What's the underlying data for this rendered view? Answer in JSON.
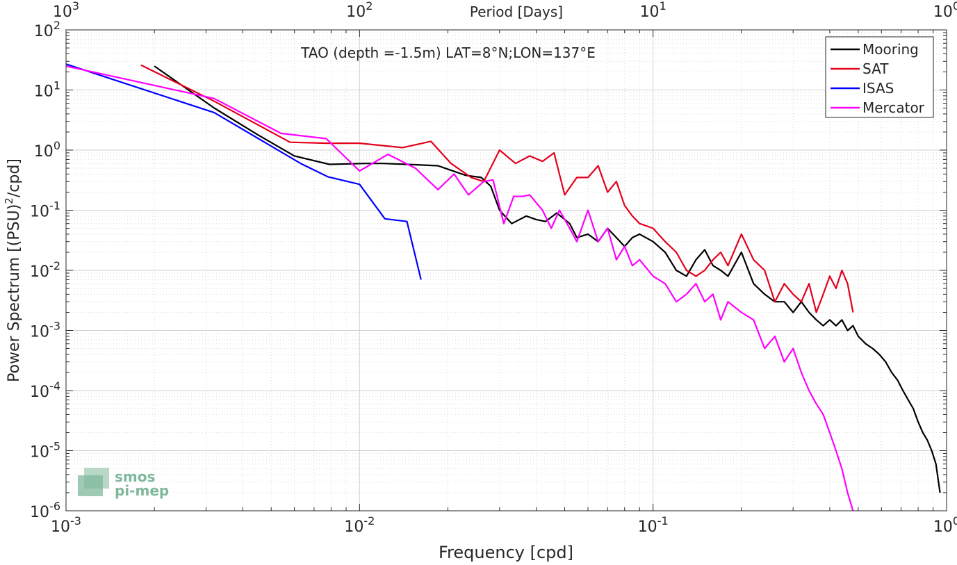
{
  "chart_data": {
    "type": "line",
    "title": "TAO (depth =-1.5m) LAT=8°N;LON=137°E",
    "xlabel": "Frequency [cpd]",
    "ylabel_main": "Power Spectrum [(PSU)",
    "ylabel_sup": "2",
    "ylabel_tail": "/cpd]",
    "top_axis_label": "Period [Days]",
    "x_scale": "log",
    "y_scale": "log",
    "xlim": [
      0.001,
      1
    ],
    "ylim": [
      1e-06,
      100
    ],
    "x_ticks": [
      {
        "value": 0.001,
        "base": "10",
        "exp": "-3"
      },
      {
        "value": 0.01,
        "base": "10",
        "exp": "-2"
      },
      {
        "value": 0.1,
        "base": "10",
        "exp": "-1"
      },
      {
        "value": 1,
        "base": "10",
        "exp": "0"
      }
    ],
    "y_ticks": [
      {
        "value": 1e-06,
        "base": "10",
        "exp": "-6"
      },
      {
        "value": 1e-05,
        "base": "10",
        "exp": "-5"
      },
      {
        "value": 0.0001,
        "base": "10",
        "exp": "-4"
      },
      {
        "value": 0.001,
        "base": "10",
        "exp": "-3"
      },
      {
        "value": 0.01,
        "base": "10",
        "exp": "-2"
      },
      {
        "value": 0.1,
        "base": "10",
        "exp": "-1"
      },
      {
        "value": 1,
        "base": "10",
        "exp": "0"
      },
      {
        "value": 10,
        "base": "10",
        "exp": "1"
      },
      {
        "value": 100,
        "base": "10",
        "exp": "2"
      }
    ],
    "top_ticks": [
      {
        "value": 0.001,
        "base": "10",
        "exp": "3"
      },
      {
        "value": 0.01,
        "base": "10",
        "exp": "2"
      },
      {
        "value": 0.1,
        "base": "10",
        "exp": "1"
      },
      {
        "value": 1,
        "base": "10",
        "exp": "0"
      }
    ],
    "grid": true,
    "legend_position": "top-right",
    "series": [
      {
        "name": "Mooring",
        "color": "#000000",
        "x": [
          0.002,
          0.0032,
          0.0045,
          0.006,
          0.0079,
          0.0105,
          0.012,
          0.0145,
          0.0185,
          0.023,
          0.026,
          0.028,
          0.03,
          0.033,
          0.037,
          0.04,
          0.043,
          0.047,
          0.052,
          0.055,
          0.06,
          0.065,
          0.07,
          0.075,
          0.08,
          0.085,
          0.09,
          0.1,
          0.11,
          0.12,
          0.13,
          0.14,
          0.15,
          0.16,
          0.17,
          0.18,
          0.2,
          0.22,
          0.24,
          0.26,
          0.28,
          0.3,
          0.32,
          0.34,
          0.36,
          0.38,
          0.4,
          0.42,
          0.44,
          0.46,
          0.48,
          0.5,
          0.53,
          0.56,
          0.59,
          0.62,
          0.65,
          0.68,
          0.71,
          0.74,
          0.77,
          0.8,
          0.83,
          0.86,
          0.89,
          0.92,
          0.95
        ],
        "y": [
          25,
          5,
          1.8,
          0.8,
          0.58,
          0.6,
          0.6,
          0.58,
          0.55,
          0.38,
          0.35,
          0.25,
          0.1,
          0.06,
          0.08,
          0.07,
          0.065,
          0.09,
          0.06,
          0.035,
          0.04,
          0.03,
          0.05,
          0.035,
          0.025,
          0.035,
          0.04,
          0.03,
          0.02,
          0.01,
          0.008,
          0.015,
          0.022,
          0.012,
          0.01,
          0.008,
          0.02,
          0.006,
          0.004,
          0.003,
          0.003,
          0.002,
          0.003,
          0.002,
          0.0015,
          0.0012,
          0.0015,
          0.0012,
          0.0015,
          0.001,
          0.0012,
          0.0008,
          0.0006,
          0.0005,
          0.0004,
          0.0003,
          0.0002,
          0.00015,
          0.0001,
          7e-05,
          5e-05,
          3e-05,
          2e-05,
          1.5e-05,
          1e-05,
          6e-06,
          2e-06
        ]
      },
      {
        "name": "SAT",
        "color": "#e3001b",
        "x": [
          0.0018,
          0.0032,
          0.0058,
          0.0078,
          0.01,
          0.014,
          0.0175,
          0.0205,
          0.024,
          0.0265,
          0.03,
          0.034,
          0.038,
          0.042,
          0.046,
          0.05,
          0.055,
          0.06,
          0.065,
          0.07,
          0.075,
          0.08,
          0.085,
          0.09,
          0.1,
          0.11,
          0.12,
          0.13,
          0.14,
          0.15,
          0.16,
          0.17,
          0.18,
          0.2,
          0.22,
          0.24,
          0.26,
          0.28,
          0.3,
          0.32,
          0.34,
          0.36,
          0.38,
          0.4,
          0.42,
          0.44,
          0.46,
          0.48
        ],
        "y": [
          26,
          6.5,
          1.35,
          1.3,
          1.3,
          1.1,
          1.4,
          0.6,
          0.35,
          0.3,
          1.0,
          0.6,
          0.8,
          0.65,
          0.9,
          0.18,
          0.35,
          0.35,
          0.55,
          0.2,
          0.3,
          0.12,
          0.08,
          0.06,
          0.05,
          0.03,
          0.02,
          0.01,
          0.008,
          0.01,
          0.015,
          0.02,
          0.012,
          0.04,
          0.015,
          0.01,
          0.003,
          0.006,
          0.004,
          0.003,
          0.006,
          0.002,
          0.004,
          0.008,
          0.005,
          0.01,
          0.006,
          0.002
        ]
      },
      {
        "name": "ISAS",
        "color": "#0000ff",
        "x": [
          0.001,
          0.0032,
          0.0063,
          0.0078,
          0.01,
          0.0122,
          0.0145,
          0.0162
        ],
        "y": [
          27,
          4.2,
          0.6,
          0.36,
          0.27,
          0.072,
          0.065,
          0.007
        ]
      },
      {
        "name": "Mercator",
        "color": "#ff00ff",
        "x": [
          0.001,
          0.0032,
          0.0054,
          0.0077,
          0.01,
          0.0125,
          0.0155,
          0.0185,
          0.021,
          0.0235,
          0.0265,
          0.0285,
          0.031,
          0.0335,
          0.036,
          0.038,
          0.042,
          0.045,
          0.048,
          0.052,
          0.055,
          0.06,
          0.065,
          0.07,
          0.075,
          0.08,
          0.085,
          0.09,
          0.1,
          0.11,
          0.12,
          0.13,
          0.14,
          0.15,
          0.16,
          0.17,
          0.18,
          0.2,
          0.22,
          0.24,
          0.26,
          0.28,
          0.3,
          0.32,
          0.34,
          0.36,
          0.38,
          0.4,
          0.42,
          0.44,
          0.46,
          0.48
        ],
        "y": [
          25,
          7.2,
          1.9,
          1.55,
          0.45,
          0.85,
          0.5,
          0.22,
          0.4,
          0.18,
          0.3,
          0.32,
          0.06,
          0.17,
          0.17,
          0.18,
          0.1,
          0.05,
          0.1,
          0.05,
          0.03,
          0.1,
          0.03,
          0.05,
          0.015,
          0.025,
          0.012,
          0.015,
          0.008,
          0.006,
          0.003,
          0.004,
          0.006,
          0.003,
          0.004,
          0.0015,
          0.003,
          0.002,
          0.0015,
          0.0005,
          0.0008,
          0.0003,
          0.0005,
          0.0002,
          0.0001,
          6e-05,
          4e-05,
          2e-05,
          1e-05,
          5e-06,
          2e-06,
          1e-06
        ]
      }
    ]
  },
  "logo": {
    "line1": "smos",
    "line2": "pi-mep",
    "color": "#7fb89b"
  }
}
